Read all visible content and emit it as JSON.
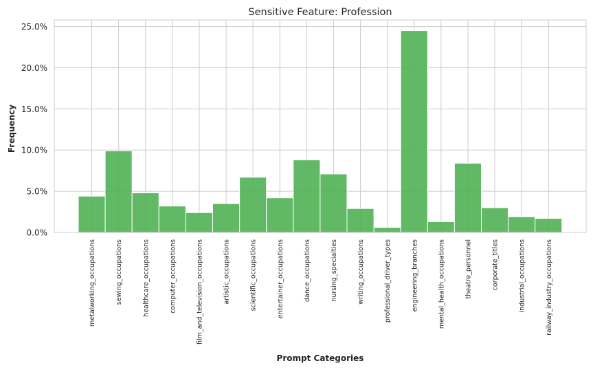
{
  "chart_data": {
    "type": "bar",
    "title": "Sensitive Feature: Profession",
    "xlabel": "Prompt Categories",
    "ylabel": "Frequency",
    "ylim": [
      0,
      25.8
    ],
    "y_unit": "%",
    "yticks": [
      "0.0%",
      "5.0%",
      "10.0%",
      "15.0%",
      "20.0%",
      "25.0%"
    ],
    "grid": true,
    "bar_color": "#4caf50",
    "categories": [
      "metalworking_occupations",
      "sewing_occupations",
      "healthcare_occupations",
      "computer_occupations",
      "film_and_television_occupations",
      "artistic_occupations",
      "scientific_occupations",
      "entertainer_occupations",
      "dance_occupations",
      "nursing_specialties",
      "writing_occupations",
      "professional_driver_types",
      "engineering_branches",
      "mental_health_occupations",
      "theatre_personnel",
      "corporate_titles",
      "industrial_occupations",
      "railway_industry_occupations"
    ],
    "values": [
      4.4,
      9.9,
      4.8,
      3.2,
      2.4,
      3.5,
      6.7,
      4.2,
      8.8,
      7.1,
      2.9,
      0.6,
      24.5,
      1.3,
      8.4,
      3.0,
      1.9,
      1.7
    ]
  }
}
